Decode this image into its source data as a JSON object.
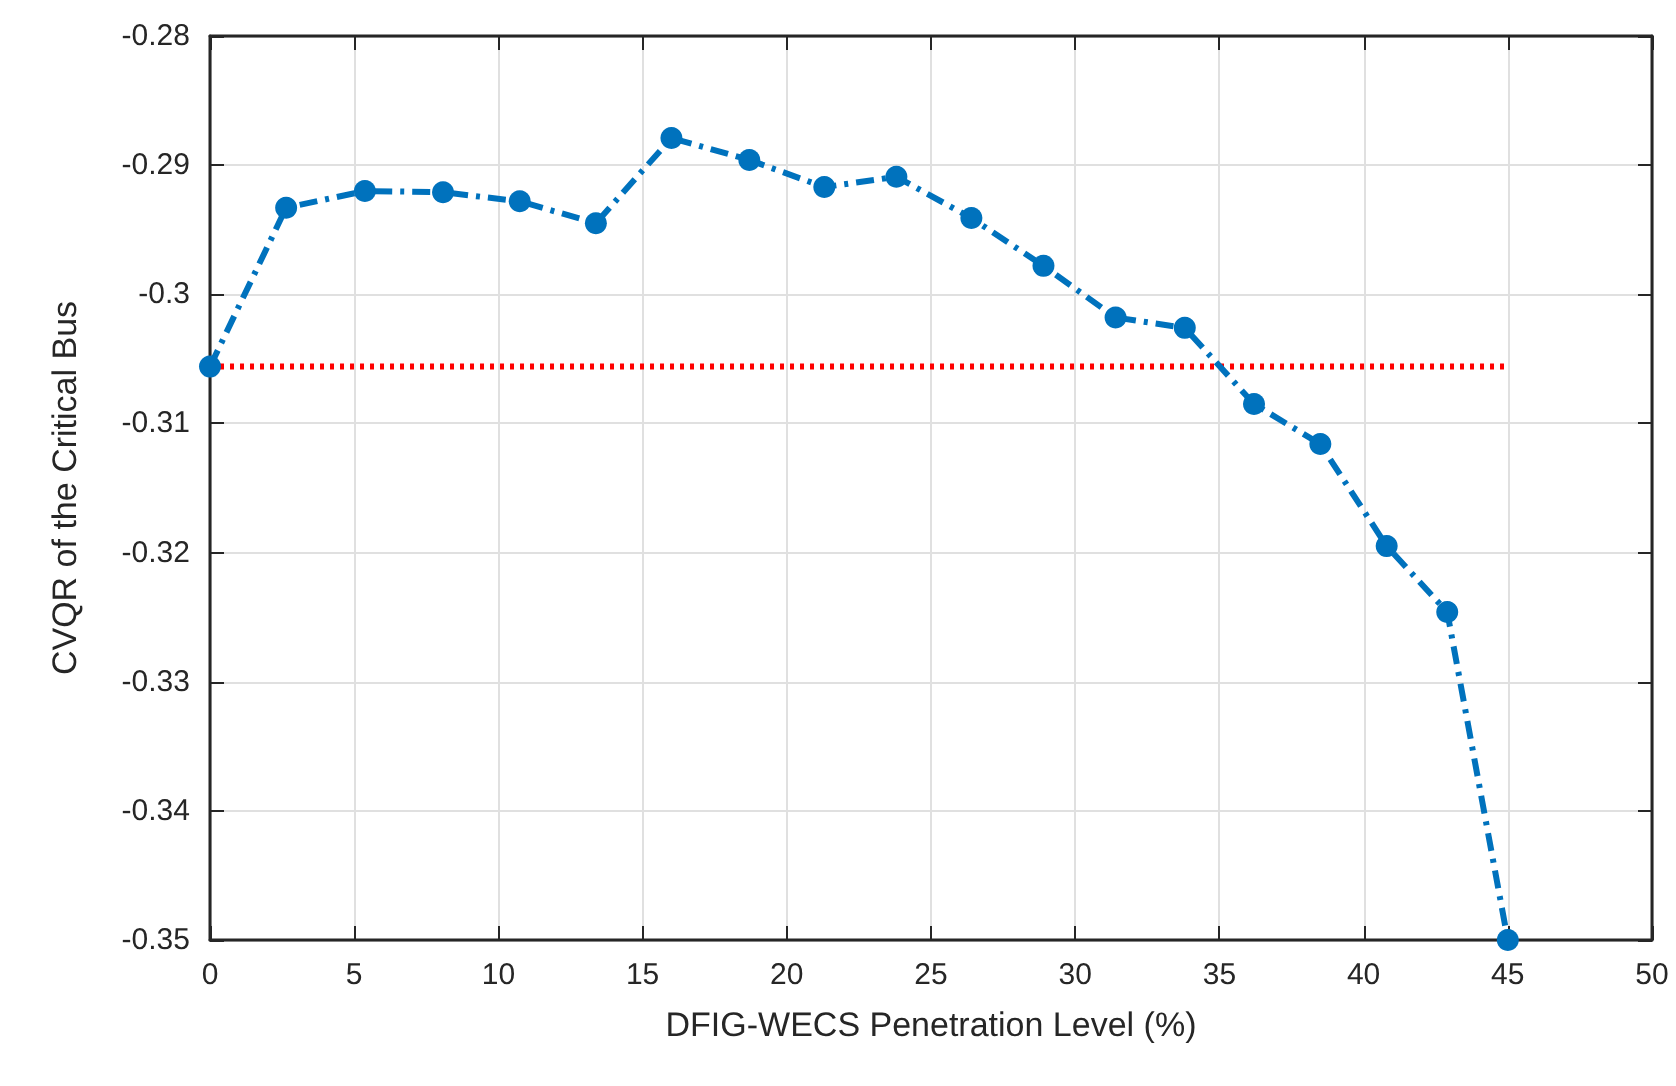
{
  "chart_data": {
    "type": "line",
    "xlabel": "DFIG-WECS Penetration Level (%)",
    "ylabel": "CVQR of the Critical Bus",
    "xlim": [
      0,
      50
    ],
    "xticks": [
      0,
      5,
      10,
      15,
      20,
      25,
      30,
      35,
      40,
      45,
      50
    ],
    "ylim": [
      -0.35,
      -0.28
    ],
    "yticks": [
      -0.35,
      -0.34,
      -0.33,
      -0.32,
      -0.31,
      -0.3,
      -0.29,
      -0.28
    ],
    "grid": true,
    "series": [
      {
        "color": "#0072bd",
        "marker": "circle",
        "line_style": "dashdot",
        "x": [
          0,
          2.64,
          5.37,
          8.08,
          10.74,
          13.38,
          16.0,
          18.7,
          21.3,
          23.8,
          26.4,
          28.9,
          31.4,
          33.8,
          36.2,
          38.5,
          40.8,
          42.9,
          45
        ],
        "values": [
          -0.3056,
          -0.2933,
          -0.292,
          -0.2921,
          -0.2928,
          -0.2945,
          -0.2879,
          -0.2896,
          -0.2917,
          -0.2909,
          -0.2941,
          -0.2978,
          -0.3018,
          -0.3026,
          -0.3085,
          -0.3116,
          -0.3195,
          -0.3246,
          -0.35
        ]
      },
      {
        "color": "#ff0000",
        "marker": "none",
        "line_style": "dotted",
        "x": [
          0,
          45
        ],
        "values": [
          -0.3056,
          -0.3056
        ]
      }
    ]
  }
}
